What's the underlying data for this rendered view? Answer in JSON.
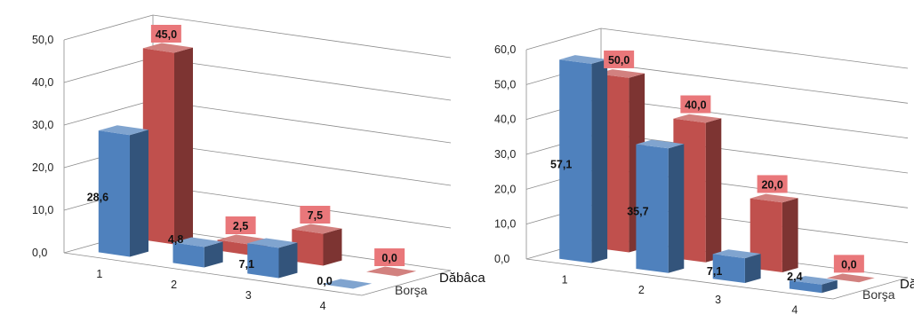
{
  "chart_data": [
    {
      "type": "bar",
      "categories": [
        "1",
        "2",
        "3",
        "4"
      ],
      "y_ticks": [
        "0,0",
        "10,0",
        "20,0",
        "30,0",
        "40,0",
        "50,0"
      ],
      "ylim": [
        0,
        50
      ],
      "grid": true,
      "series": [
        {
          "name": "Borşa",
          "values": [
            28.6,
            4.8,
            7.1,
            0.0
          ],
          "labels": [
            "28,6",
            "4,8",
            "7,1",
            "0,0"
          ],
          "color": "#4f81bd"
        },
        {
          "name": "Dăbâca",
          "values": [
            45.0,
            2.5,
            7.5,
            0.0
          ],
          "labels": [
            "45,0",
            "2,5",
            "7,5",
            "0,0"
          ],
          "color": "#c0504d"
        }
      ]
    },
    {
      "type": "bar",
      "categories": [
        "1",
        "2",
        "3",
        "4"
      ],
      "y_ticks": [
        "0,0",
        "10,0",
        "20,0",
        "30,0",
        "40,0",
        "50,0",
        "60,0"
      ],
      "ylim": [
        0,
        60
      ],
      "grid": true,
      "series": [
        {
          "name": "Borşa",
          "values": [
            57.1,
            35.7,
            7.1,
            2.4
          ],
          "labels": [
            "57,1",
            "35,7",
            "7,1",
            "2,4"
          ],
          "color": "#4f81bd"
        },
        {
          "name": "Dăbâca",
          "values": [
            50.0,
            40.0,
            20.0,
            0.0
          ],
          "labels": [
            "50,0",
            "40,0",
            "20,0",
            "0,0"
          ],
          "color": "#c0504d"
        }
      ]
    }
  ],
  "colors": {
    "front_bar": "#4f81bd",
    "back_bar": "#c0504d",
    "label_box": "#e9777a",
    "grid": "#8c8c8c"
  }
}
